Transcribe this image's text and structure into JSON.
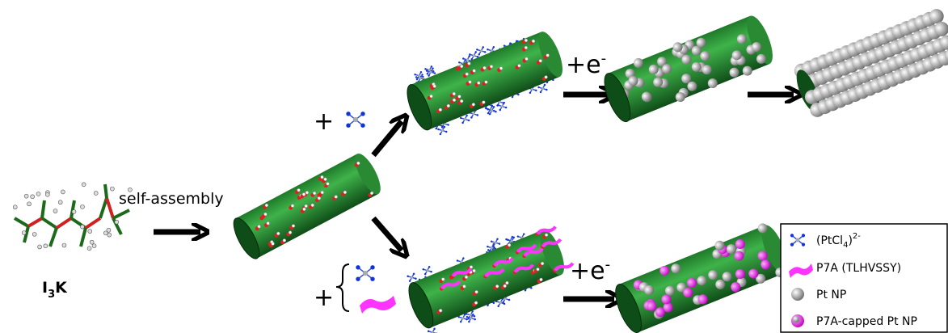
{
  "molecule_label": {
    "main": "I",
    "sub": "3",
    "rest": "K"
  },
  "step_label": "self-assembly",
  "reagent_plus_top": "+",
  "reagent_plus_bottom": "+",
  "reduction_top": {
    "main": "+e",
    "sup": "-"
  },
  "reduction_bottom": {
    "main": "+e",
    "sup": "-"
  },
  "legend": {
    "items": [
      {
        "label": "(PtCl",
        "sub": "4",
        "rest": ")",
        "sup": "2-"
      },
      {
        "label": "P7A (TLHVSSY)"
      },
      {
        "label": "Pt NP"
      },
      {
        "label": "P7A-capped Pt NP"
      }
    ]
  }
}
